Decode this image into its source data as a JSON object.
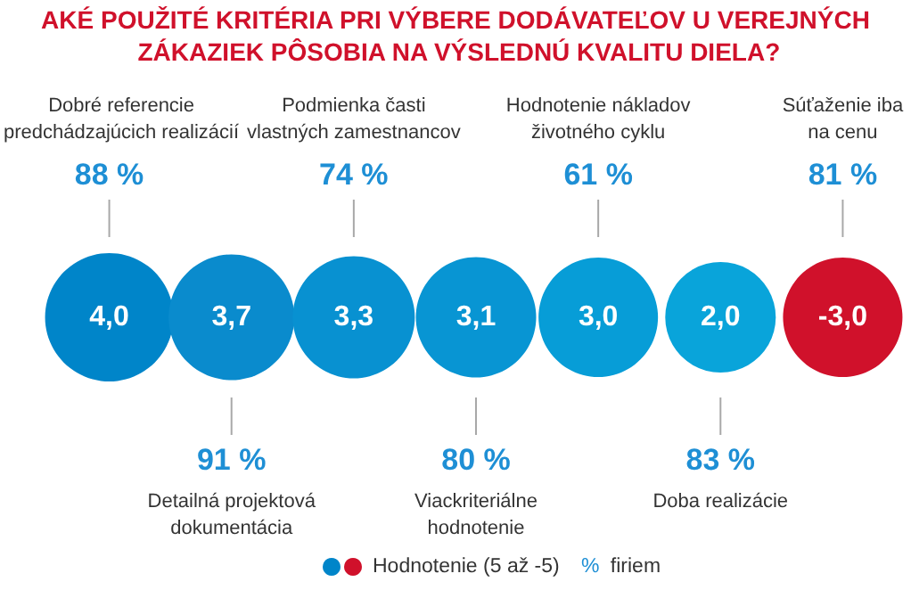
{
  "chart_data": {
    "type": "other",
    "title": "AKÉ POUŽITÉ KRITÉRIA PRI VÝBERE DODÁVATEĽOV U VEREJNÝCH ZÁKAZIEK PÔSOBIA NA VÝSLEDNÚ KVALITU DIELA?",
    "categories": [
      "Dobré referencie\npredchádzajúcich realizácií",
      "Detailná projektová\ndokumentácia",
      "Podmienka časti\nvlastných zamestnancov",
      "Viackriteriálne\nhodnotenie",
      "Hodnotenie nákladov\nživotného cyklu",
      "Doba realizácie",
      "Súťaženie iba\nna cenu"
    ],
    "series": [
      {
        "name": "Hodnotenie (5 až -5)",
        "colors": [
          "#0085c9",
          "#0a8bcd",
          "#0891d1",
          "#0895d3",
          "#079dd7",
          "#09a4da",
          "#d0112b"
        ],
        "values": [
          4.0,
          3.7,
          3.3,
          3.1,
          3.0,
          2.0,
          -3.0
        ],
        "value_labels": [
          "4,0",
          "3,7",
          "3,3",
          "3,1",
          "3,0",
          "2,0",
          "-3,0"
        ]
      },
      {
        "name": "% firiem",
        "color": "#1e8fd5",
        "values": [
          88,
          91,
          74,
          80,
          61,
          83,
          81
        ],
        "value_labels": [
          "88 %",
          "91 %",
          "74 %",
          "80 %",
          "61 %",
          "83 %",
          "81 %"
        ]
      }
    ],
    "legend": "bottom"
  }
}
